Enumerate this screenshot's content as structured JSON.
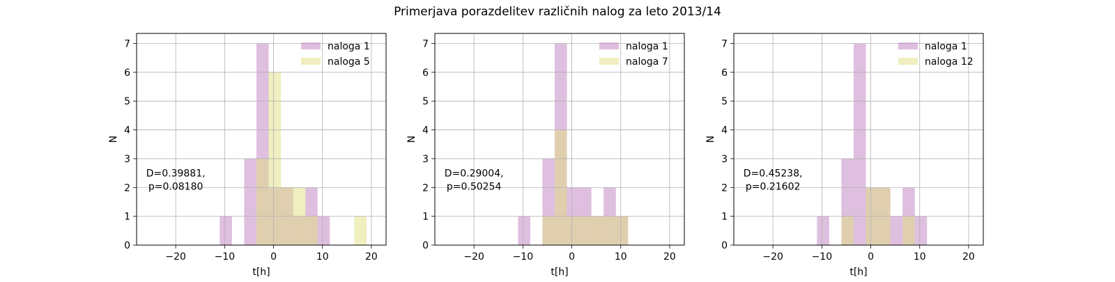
{
  "figure": {
    "title": "Primerjava porazdelitev različnih nalog za leto 2013/14"
  },
  "colors": {
    "series_a": "#bf7fbf",
    "series_b": "#dfdf7f",
    "grid": "#b0b0b0"
  },
  "chart_data": [
    {
      "type": "histogram",
      "xlabel": "t[h]",
      "ylabel": "N",
      "xlim": [
        -28,
        23
      ],
      "ylim": [
        0,
        7.35
      ],
      "xticks": [
        -20,
        -10,
        0,
        10,
        20
      ],
      "yticks": [
        0,
        1,
        2,
        3,
        4,
        5,
        6,
        7
      ],
      "grid": true,
      "legend_position": "top-right",
      "annotation": [
        "D=0.39881,",
        "p=0.08180"
      ],
      "series": [
        {
          "name": "naloga 1",
          "bin_width": 2.5,
          "bars": [
            {
              "x0": -11,
              "count": 1
            },
            {
              "x0": -6,
              "count": 3
            },
            {
              "x0": -3.5,
              "count": 7
            },
            {
              "x0": -1,
              "count": 2
            },
            {
              "x0": 1.5,
              "count": 2
            },
            {
              "x0": 4,
              "count": 1
            },
            {
              "x0": 6.5,
              "count": 2
            },
            {
              "x0": 9,
              "count": 1
            }
          ]
        },
        {
          "name": "naloga 5",
          "bin_width": 2.5,
          "bars": [
            {
              "x0": -3.5,
              "count": 3
            },
            {
              "x0": -1,
              "count": 6
            },
            {
              "x0": 1.5,
              "count": 2
            },
            {
              "x0": 4,
              "count": 2
            },
            {
              "x0": 6.5,
              "count": 1
            },
            {
              "x0": 16.5,
              "count": 1
            }
          ]
        }
      ]
    },
    {
      "type": "histogram",
      "xlabel": "t[h]",
      "ylabel": "N",
      "xlim": [
        -28,
        23
      ],
      "ylim": [
        0,
        7.35
      ],
      "xticks": [
        -20,
        -10,
        0,
        10,
        20
      ],
      "yticks": [
        0,
        1,
        2,
        3,
        4,
        5,
        6,
        7
      ],
      "grid": true,
      "legend_position": "top-right",
      "annotation": [
        "D=0.29004,",
        "p=0.50254"
      ],
      "series": [
        {
          "name": "naloga 1",
          "bin_width": 2.5,
          "bars": [
            {
              "x0": -11,
              "count": 1
            },
            {
              "x0": -6,
              "count": 3
            },
            {
              "x0": -3.5,
              "count": 7
            },
            {
              "x0": -1,
              "count": 2
            },
            {
              "x0": 1.5,
              "count": 2
            },
            {
              "x0": 4,
              "count": 1
            },
            {
              "x0": 6.5,
              "count": 2
            },
            {
              "x0": 9,
              "count": 1
            }
          ]
        },
        {
          "name": "naloga 7",
          "bin_width": 2.5,
          "bars": [
            {
              "x0": -6,
              "count": 1
            },
            {
              "x0": -3.5,
              "count": 4
            },
            {
              "x0": -1,
              "count": 1
            },
            {
              "x0": 1.5,
              "count": 1
            },
            {
              "x0": 4,
              "count": 1
            },
            {
              "x0": 6.5,
              "count": 1
            },
            {
              "x0": 9,
              "count": 1
            }
          ]
        }
      ]
    },
    {
      "type": "histogram",
      "xlabel": "t[h]",
      "ylabel": "N",
      "xlim": [
        -28,
        23
      ],
      "ylim": [
        0,
        7.35
      ],
      "xticks": [
        -20,
        -10,
        0,
        10,
        20
      ],
      "yticks": [
        0,
        1,
        2,
        3,
        4,
        5,
        6,
        7
      ],
      "grid": true,
      "legend_position": "top-right",
      "annotation": [
        "D=0.45238,",
        "p=0.21602"
      ],
      "series": [
        {
          "name": "naloga 1",
          "bin_width": 2.5,
          "bars": [
            {
              "x0": -11,
              "count": 1
            },
            {
              "x0": -6,
              "count": 3
            },
            {
              "x0": -3.5,
              "count": 7
            },
            {
              "x0": -1,
              "count": 2
            },
            {
              "x0": 1.5,
              "count": 2
            },
            {
              "x0": 4,
              "count": 1
            },
            {
              "x0": 6.5,
              "count": 2
            },
            {
              "x0": 9,
              "count": 1
            }
          ]
        },
        {
          "name": "naloga 12",
          "bin_width": 2.5,
          "bars": [
            {
              "x0": -6,
              "count": 1
            },
            {
              "x0": -1,
              "count": 2
            },
            {
              "x0": 1.5,
              "count": 2
            },
            {
              "x0": 6.5,
              "count": 1
            }
          ]
        }
      ]
    }
  ]
}
